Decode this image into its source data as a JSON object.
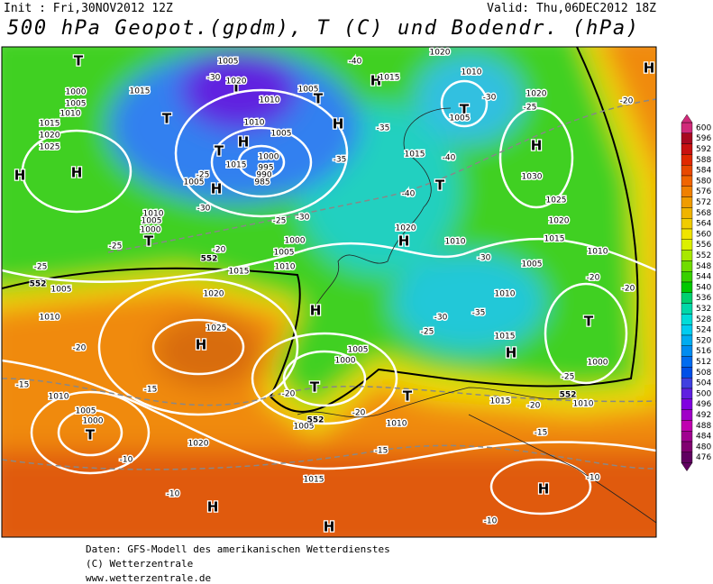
{
  "header": {
    "init": "Init : Fri,30NOV2012 12Z",
    "valid": "Valid: Thu,06DEC2012 18Z",
    "title": "500 hPa Geopot.(gpdm), T (C) und Bodendr. (hPa)"
  },
  "legend": {
    "levels": [
      {
        "value": "600",
        "color": "#d02a7a"
      },
      {
        "value": "596",
        "color": "#a80820"
      },
      {
        "value": "592",
        "color": "#c81010"
      },
      {
        "value": "588",
        "color": "#e02800"
      },
      {
        "value": "584",
        "color": "#e84800"
      },
      {
        "value": "580",
        "color": "#f06400"
      },
      {
        "value": "576",
        "color": "#f08000"
      },
      {
        "value": "572",
        "color": "#f09c00"
      },
      {
        "value": "568",
        "color": "#f0b400"
      },
      {
        "value": "564",
        "color": "#f0cc00"
      },
      {
        "value": "560",
        "color": "#f0e400"
      },
      {
        "value": "556",
        "color": "#dcf000"
      },
      {
        "value": "552",
        "color": "#a8e800"
      },
      {
        "value": "548",
        "color": "#70dc00"
      },
      {
        "value": "544",
        "color": "#38d000"
      },
      {
        "value": "540",
        "color": "#00c800"
      },
      {
        "value": "536",
        "color": "#00d070"
      },
      {
        "value": "532",
        "color": "#00d8a8"
      },
      {
        "value": "528",
        "color": "#00dcd8"
      },
      {
        "value": "524",
        "color": "#00ccf0"
      },
      {
        "value": "520",
        "color": "#00acf0"
      },
      {
        "value": "516",
        "color": "#008cf0"
      },
      {
        "value": "512",
        "color": "#006cf0"
      },
      {
        "value": "508",
        "color": "#0050e8"
      },
      {
        "value": "504",
        "color": "#4040e0"
      },
      {
        "value": "500",
        "color": "#6020e0"
      },
      {
        "value": "496",
        "color": "#8000e0"
      },
      {
        "value": "492",
        "color": "#a000c8"
      },
      {
        "value": "488",
        "color": "#c000b0"
      },
      {
        "value": "484",
        "color": "#a00090"
      },
      {
        "value": "480",
        "color": "#800070"
      },
      {
        "value": "476",
        "color": "#600060"
      }
    ]
  },
  "map": {
    "pressure_centers": [
      "H",
      "H",
      "T",
      "T",
      "T",
      "H",
      "T",
      "H",
      "H",
      "T",
      "H",
      "T",
      "H",
      "T",
      "T",
      "H",
      "H",
      "H",
      "T",
      "T",
      "H",
      "H",
      "T",
      "H",
      "H",
      "T",
      "H"
    ],
    "isobar_labels": [
      "1020",
      "1025",
      "1010",
      "1010",
      "1005",
      "1000",
      "1020",
      "1015",
      "1010",
      "1005",
      "1005",
      "1000",
      "1015",
      "1010",
      "1000",
      "1015",
      "1010",
      "1005",
      "1010",
      "1015",
      "1020",
      "1025",
      "1030",
      "1020",
      "1015",
      "1005",
      "1010",
      "1020",
      "1015",
      "1000",
      "1005",
      "1010",
      "1015",
      "1010",
      "1005",
      "1020",
      "1005",
      "1010",
      "1010",
      "1005",
      "1000",
      "995",
      "990",
      "985",
      "1015",
      "1005",
      "1010",
      "1005",
      "1000",
      "1000",
      "1005",
      "1010",
      "1015",
      "1020",
      "1025",
      "1015",
      "1005",
      "1020"
    ],
    "temperature_labels": [
      "-20",
      "-15",
      "-15",
      "-10",
      "-10",
      "-10",
      "-10",
      "-15",
      "-15",
      "-20",
      "-20",
      "-20",
      "-25",
      "-25",
      "-30",
      "-35",
      "-30",
      "-20",
      "-20",
      "-20",
      "-25",
      "-35",
      "-40",
      "-40",
      "-35",
      "-30",
      "-25",
      "-20",
      "-25",
      "-25",
      "-30",
      "-40",
      "-30",
      "-30",
      "-25"
    ],
    "contour_labels": [
      "552",
      "552",
      "552",
      "552"
    ]
  },
  "footer": {
    "source": "Daten: GFS-Modell des amerikanischen Wetterdienstes",
    "copyright": "(C) Wetterzentrale",
    "url": "www.wetterzentrale.de"
  }
}
